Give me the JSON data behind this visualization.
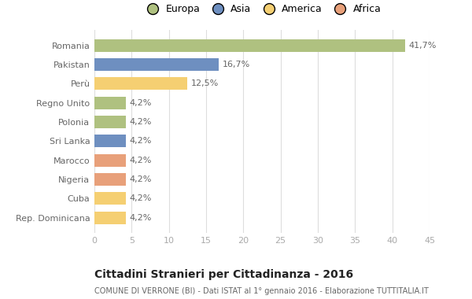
{
  "categories": [
    "Romania",
    "Pakistan",
    "Perù",
    "Regno Unito",
    "Polonia",
    "Sri Lanka",
    "Marocco",
    "Nigeria",
    "Cuba",
    "Rep. Dominicana"
  ],
  "values": [
    41.7,
    16.7,
    12.5,
    4.2,
    4.2,
    4.2,
    4.2,
    4.2,
    4.2,
    4.2
  ],
  "labels": [
    "41,7%",
    "16,7%",
    "12,5%",
    "4,2%",
    "4,2%",
    "4,2%",
    "4,2%",
    "4,2%",
    "4,2%",
    "4,2%"
  ],
  "colors": [
    "#afc180",
    "#6e8fc0",
    "#f5cf72",
    "#afc180",
    "#afc180",
    "#6e8fc0",
    "#e8a07a",
    "#e8a07a",
    "#f5cf72",
    "#f5cf72"
  ],
  "legend_labels": [
    "Europa",
    "Asia",
    "America",
    "Africa"
  ],
  "legend_colors": [
    "#afc180",
    "#6e8fc0",
    "#f5cf72",
    "#e8a07a"
  ],
  "title": "Cittadini Stranieri per Cittadinanza - 2016",
  "subtitle": "COMUNE DI VERRONE (BI) - Dati ISTAT al 1° gennaio 2016 - Elaborazione TUTTITALIA.IT",
  "xlim": [
    0,
    45
  ],
  "xticks": [
    0,
    5,
    10,
    15,
    20,
    25,
    30,
    35,
    40,
    45
  ],
  "background_color": "#ffffff",
  "grid_color": "#dddddd",
  "bar_height": 0.65,
  "label_color": "#666666",
  "tick_color": "#aaaaaa"
}
